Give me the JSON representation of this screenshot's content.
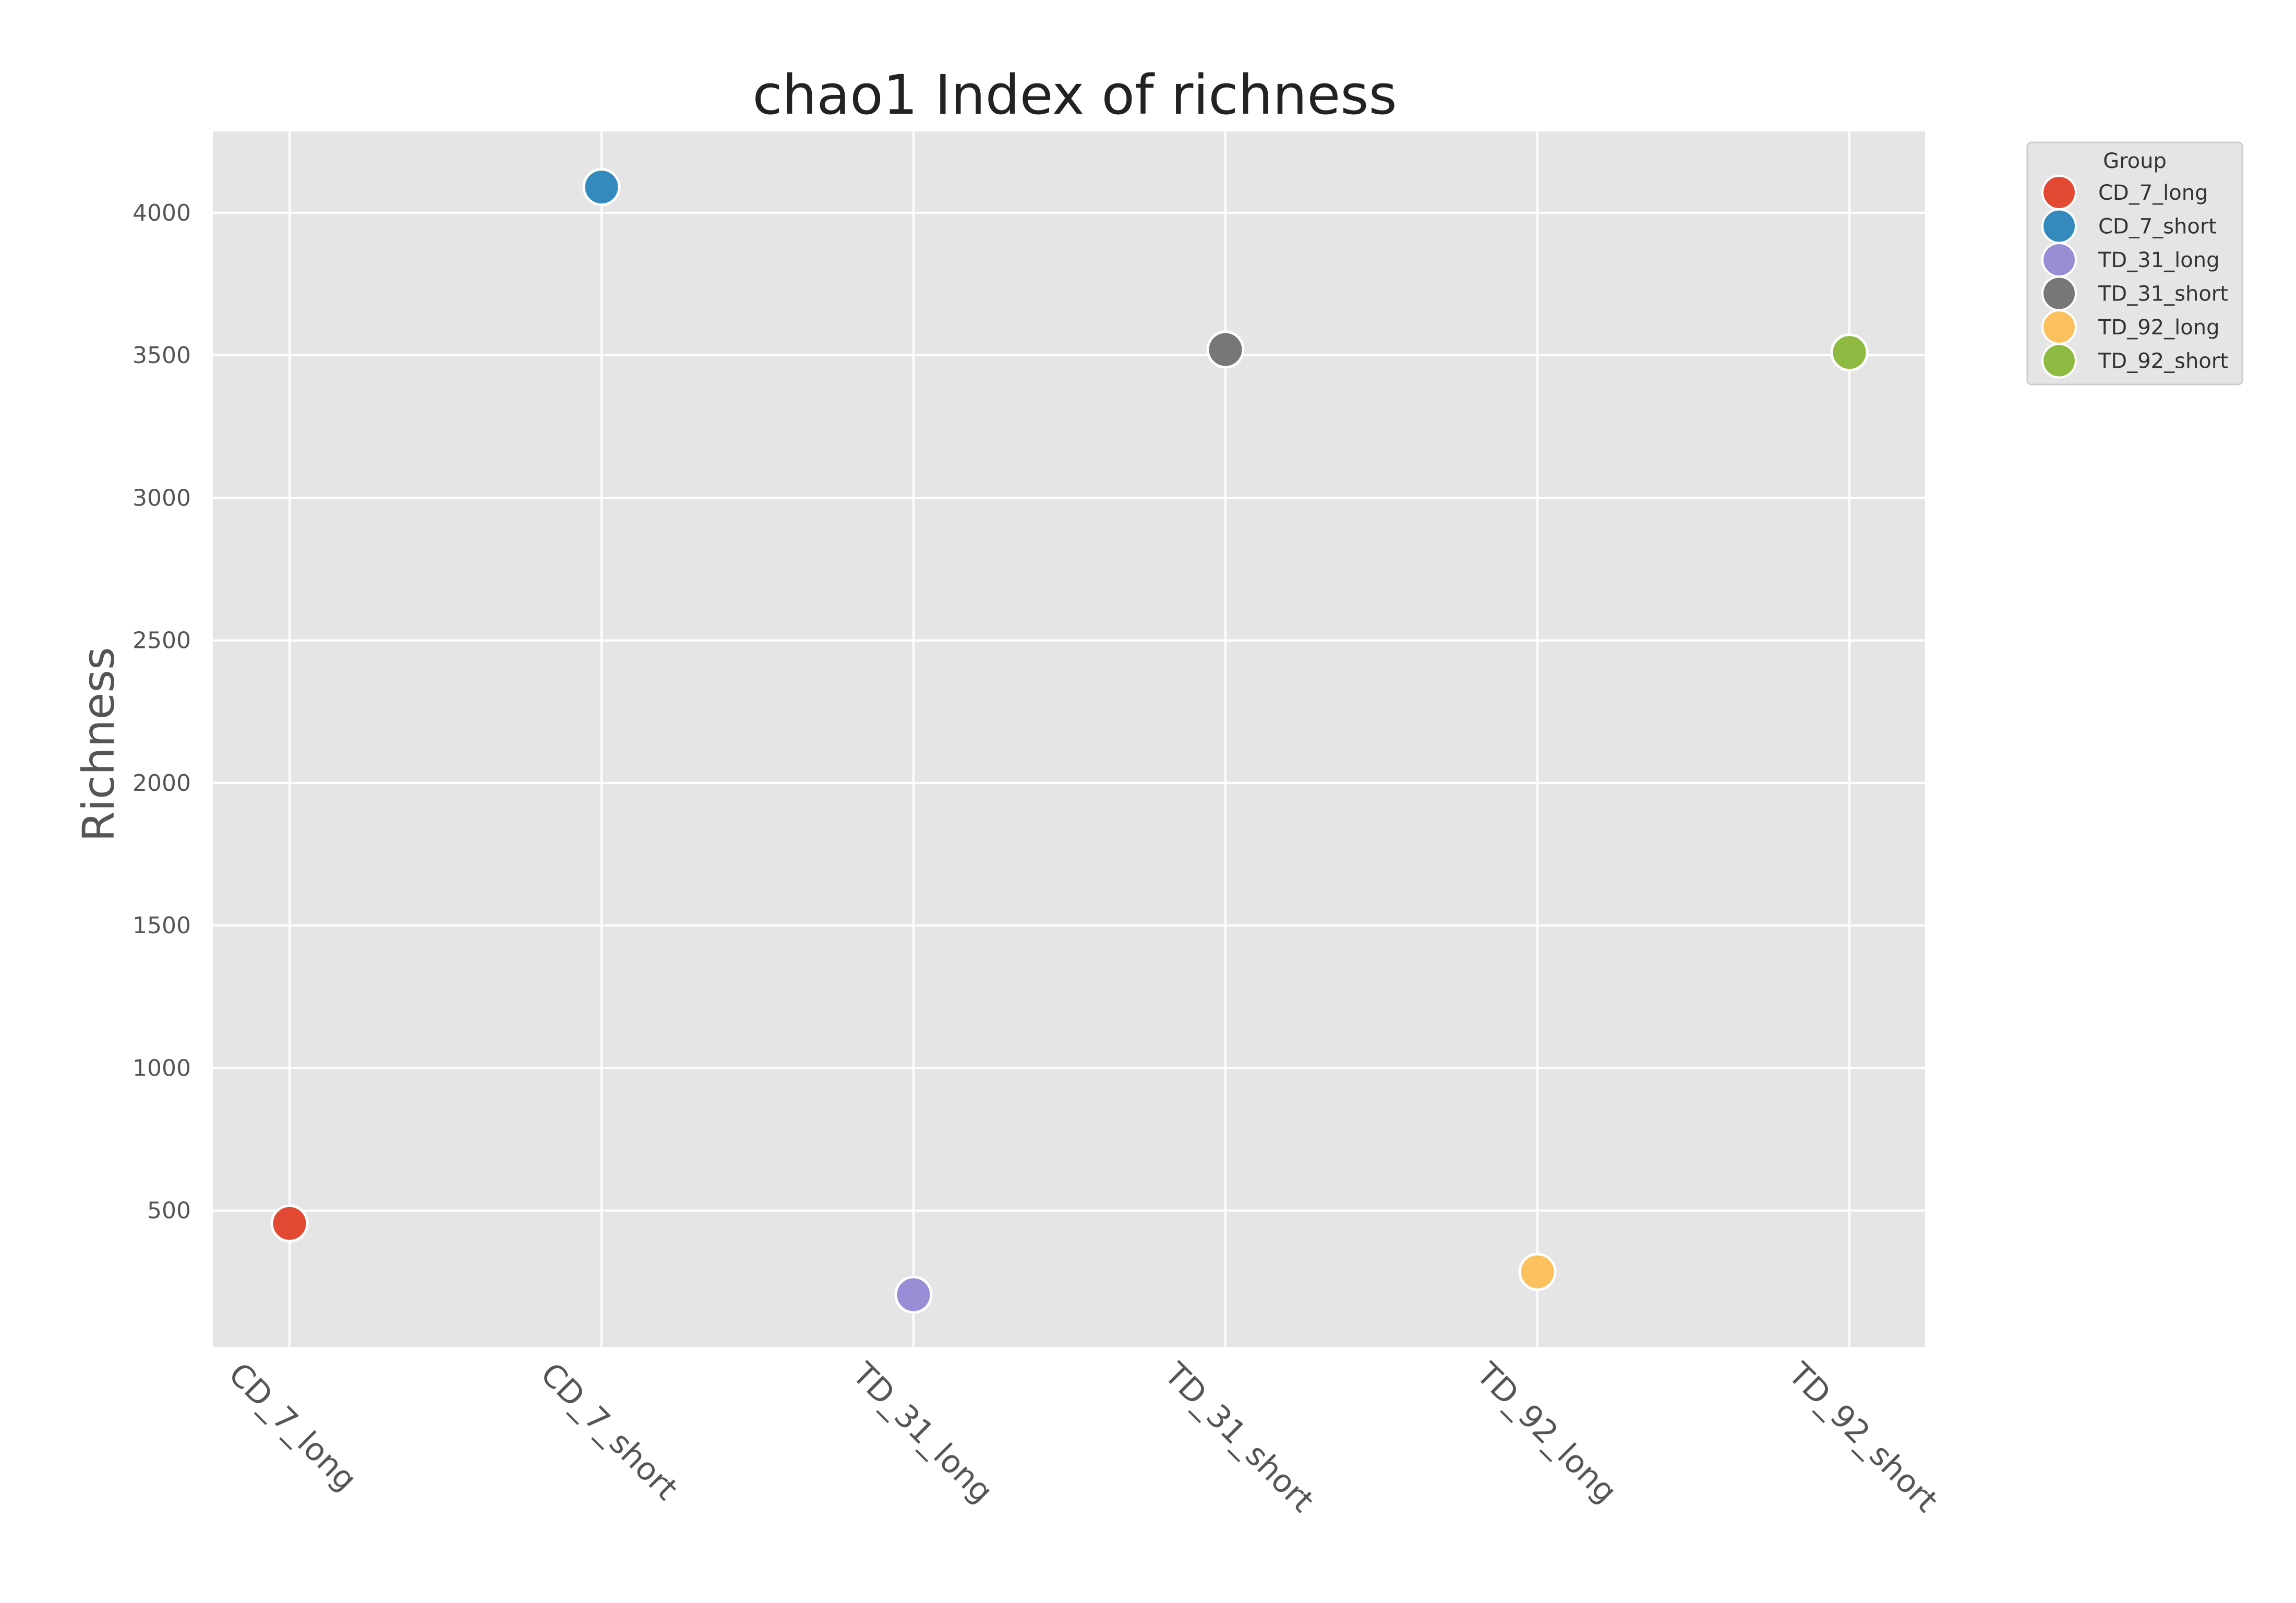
{
  "chart_data": {
    "type": "scatter",
    "title": "chao1 Index of richness",
    "xlabel": "",
    "ylabel": "Richness",
    "categories": [
      "CD_7_long",
      "CD_7_short",
      "TD_31_long",
      "TD_31_short",
      "TD_92_long",
      "TD_92_short"
    ],
    "values": [
      455,
      4090,
      205,
      3520,
      285,
      3510
    ],
    "ylim": [
      22,
      4285
    ],
    "yticks": [
      500,
      1000,
      1500,
      2000,
      2500,
      3000,
      3500,
      4000
    ],
    "grid": true,
    "legend": {
      "title": "Group",
      "placement": "outside-top-right",
      "entries": [
        "CD_7_long",
        "CD_7_short",
        "TD_31_long",
        "TD_31_short",
        "TD_92_long",
        "TD_92_short"
      ]
    },
    "colors": [
      "#E24A33",
      "#348ABD",
      "#988ED5",
      "#777777",
      "#FBC15E",
      "#8EBA42"
    ],
    "plot_background": "#E5E5E5",
    "grid_color": "#FFFFFF",
    "text_color": "#555555",
    "title_color": "#222222"
  }
}
